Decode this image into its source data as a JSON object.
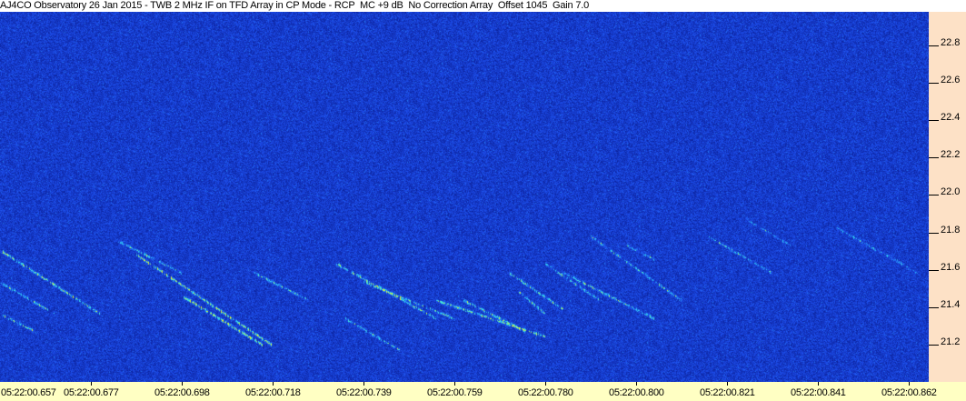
{
  "title": "AJ4CO Observatory 26 Jan 2015 - TWB 2 MHz IF on TFD Array in CP Mode - RCP  MC +9 dB  No Correction Array  Offset 1045  Gain 7.0",
  "chart_data": {
    "type": "heatmap",
    "title": "AJ4CO Observatory 26 Jan 2015 - TWB 2 MHz IF on TFD Array in CP Mode - RCP  MC +9 dB  No Correction Array  Offset 1045  Gain 7.0",
    "x_tick_labels": [
      "05:22:00.657",
      "05:22:00.677",
      "05:22:00.698",
      "05:22:00.718",
      "05:22:00.739",
      "05:22:00.759",
      "05:22:00.780",
      "05:22:00.800",
      "05:22:00.821",
      "05:22:00.841",
      "05:22:00.862"
    ],
    "y_tick_labels": [
      "22.8",
      "22.6",
      "22.4",
      "22.2",
      "22.0",
      "21.8",
      "21.6",
      "21.4",
      "21.2"
    ],
    "y_ticks": [
      22.8,
      22.6,
      22.4,
      22.2,
      22.0,
      21.8,
      21.6,
      21.4,
      21.2
    ],
    "ylim": [
      21.0,
      22.98
    ],
    "y_axis_position": "right",
    "colors": {
      "background_noise": "#1030c0",
      "emission_low": "#40c0ff",
      "emission_high": "#ffff40",
      "y_axis_bg": "#fde1c6",
      "x_axis_bg": "#ffffc3"
    }
  }
}
